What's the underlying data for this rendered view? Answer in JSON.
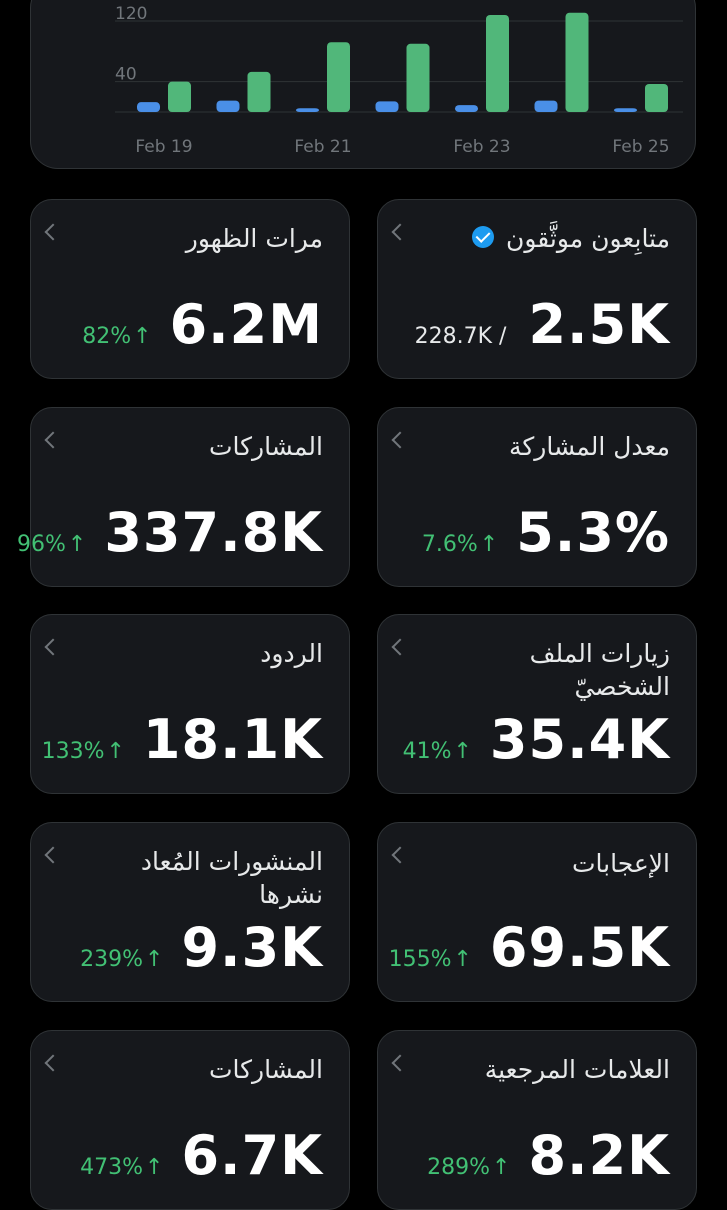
{
  "chart_data": {
    "type": "bar",
    "categories": [
      "Feb 19",
      "Feb 20",
      "Feb 21",
      "Feb 22",
      "Feb 23",
      "Feb 24",
      "Feb 25"
    ],
    "x_tick_labels": [
      "Feb 19",
      "Feb 21",
      "Feb 23",
      "Feb 25"
    ],
    "y_tick_labels": [
      "120",
      "40"
    ],
    "series": [
      {
        "values": [
          13,
          15,
          5,
          14,
          9,
          15,
          5
        ],
        "color": "#4a8fe7"
      },
      {
        "values": [
          40,
          53,
          92,
          90,
          128,
          131,
          37
        ],
        "color": "#51b77a"
      }
    ],
    "ylim": [
      0,
      140
    ],
    "grid": true,
    "legend": "none"
  },
  "cards": [
    {
      "title": "مرات الظهور",
      "value": "6.2M",
      "change": "82%",
      "arrow": "↑"
    },
    {
      "title": "متابِعون موثَّقون",
      "value": "2.5K",
      "sub": "228.7K /",
      "verified": true,
      "icon": "verified-badge-icon"
    },
    {
      "title": "المشاركات",
      "value": "337.8K",
      "change": "96%",
      "arrow": "↑"
    },
    {
      "title": "معدل المشاركة",
      "value": "5.3%",
      "change": "7.6%",
      "arrow": "↑"
    },
    {
      "title": "الردود",
      "value": "18.1K",
      "change": "133%",
      "arrow": "↑"
    },
    {
      "title": "زيارات الملف الشخصيّ",
      "value": "35.4K",
      "change": "41%",
      "arrow": "↑"
    },
    {
      "title": "المنشورات المُعاد نشرها",
      "value": "9.3K",
      "change": "239%",
      "arrow": "↑"
    },
    {
      "title": "الإعجابات",
      "value": "69.5K",
      "change": "155%",
      "arrow": "↑"
    },
    {
      "title": "المشاركات",
      "value": "6.7K",
      "change": "473%",
      "arrow": "↑"
    },
    {
      "title": "العلامات المرجعية",
      "value": "8.2K",
      "change": "289%",
      "arrow": "↑"
    }
  ],
  "colors": {
    "background": "#000000",
    "card": "#16181c",
    "border": "#2f3336",
    "positive": "#42c074"
  }
}
